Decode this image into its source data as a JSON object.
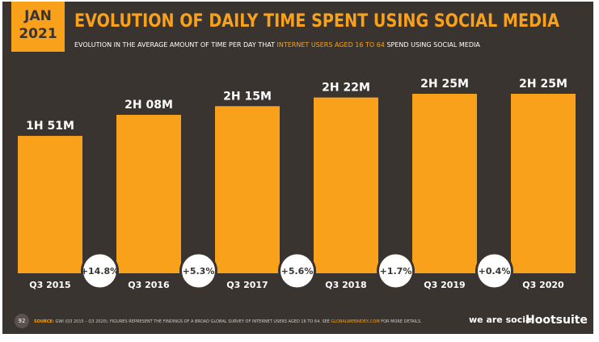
{
  "chart_data": {
    "type": "bar",
    "badge": [
      "JAN",
      "2021"
    ],
    "title": "EVOLUTION OF DAILY TIME SPENT USING SOCIAL MEDIA",
    "subtitle": [
      "EVOLUTION IN THE AVERAGE AMOUNT OF TIME PER DAY THAT ",
      "INTERNET USERS AGED 16 TO 64",
      " SPEND USING SOCIAL MEDIA"
    ],
    "categories": [
      "Q3 2015",
      "Q3 2016",
      "Q3 2017",
      "Q3 2018",
      "Q3 2019",
      "Q3 2020"
    ],
    "values": [
      111,
      128,
      135,
      142,
      145,
      145
    ],
    "value_labels": [
      "1H 51M",
      "2H 08M",
      "2H 15M",
      "2H 22M",
      "2H 25M",
      "2H 25M"
    ],
    "changes": [
      14.8,
      5.3,
      5.6,
      1.7,
      0.4
    ],
    "change_labels": [
      "+14.8%",
      "+5.3%",
      "+5.6%",
      "+1.7%",
      "+0.4%"
    ],
    "color": "#f9a11b",
    "page_number": "92",
    "source": [
      "SOURCE:",
      " GWI (Q3 2015 – Q3 2020). FIGURES REPRESENT THE FINDINGS OF A BROAD GLOBAL SURVEY OF INTERNET USERS AGED 16 TO 64. SEE ",
      "GLOBALWEBINDEX.COM",
      " FOR MORE DETAILS."
    ],
    "brands": [
      "we are social",
      "Hootsuite"
    ]
  }
}
